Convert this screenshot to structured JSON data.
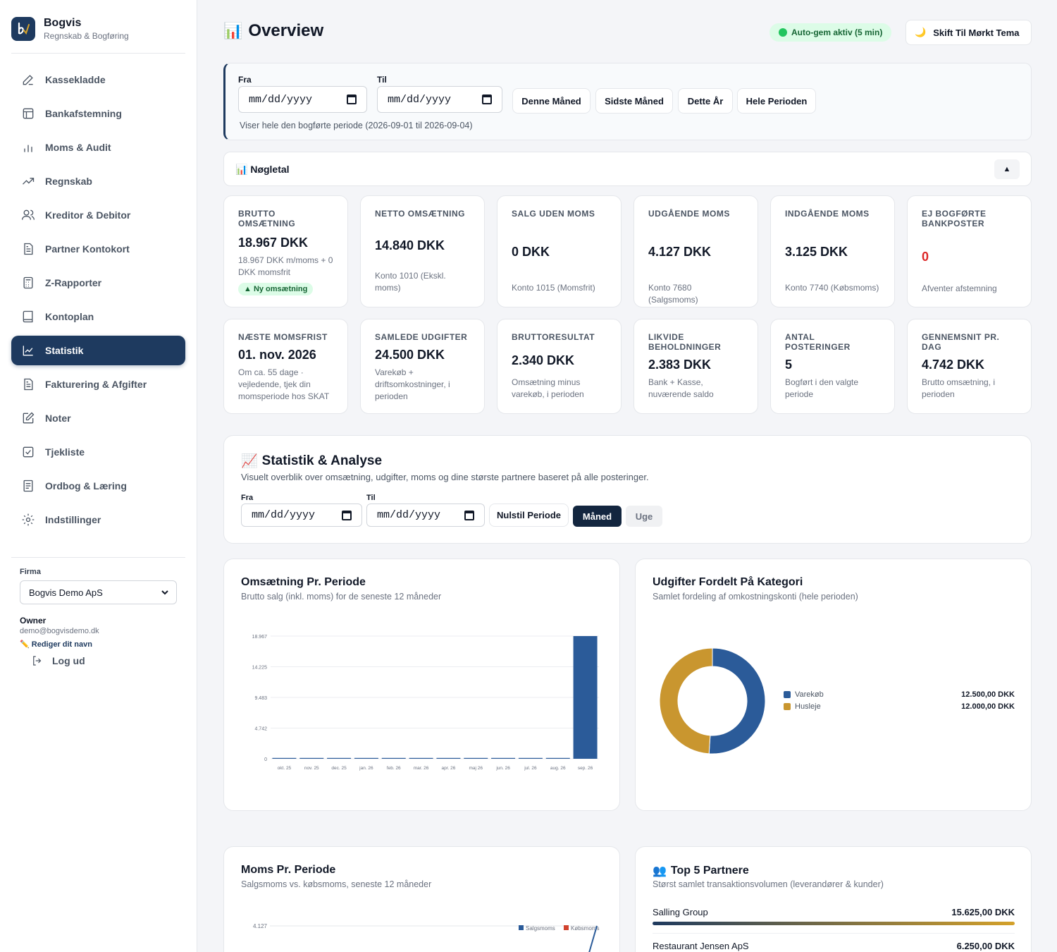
{
  "brand": {
    "name": "Bogvis",
    "subtitle": "Regnskab & Bogføring"
  },
  "nav": [
    {
      "label": "Kassekladde",
      "icon": "pencil-icon"
    },
    {
      "label": "Bankafstemning",
      "icon": "layout-icon"
    },
    {
      "label": "Moms & Audit",
      "icon": "bar-chart-icon"
    },
    {
      "label": "Regnskab",
      "icon": "trending-up-icon"
    },
    {
      "label": "Kreditor & Debitor",
      "icon": "users-icon"
    },
    {
      "label": "Partner Kontokort",
      "icon": "file-text-icon"
    },
    {
      "label": "Z-Rapporter",
      "icon": "calculator-icon"
    },
    {
      "label": "Kontoplan",
      "icon": "book-icon"
    },
    {
      "label": "Statistik",
      "icon": "line-chart-icon",
      "active": true
    },
    {
      "label": "Fakturering & Afgifter",
      "icon": "file-text-icon"
    },
    {
      "label": "Noter",
      "icon": "edit-icon"
    },
    {
      "label": "Tjekliste",
      "icon": "check-square-icon"
    },
    {
      "label": "Ordbog & Læring",
      "icon": "book-open-icon"
    },
    {
      "label": "Indstillinger",
      "icon": "gear-icon"
    }
  ],
  "firma": {
    "label": "Firma",
    "selected": "Bogvis Demo ApS"
  },
  "user": {
    "role": "Owner",
    "email": "demo@bogvisdemo.dk",
    "edit_label": "Rediger dit navn",
    "logout": "Log ud"
  },
  "header": {
    "title": "Overview",
    "autosave": "Auto-gem aktiv (5 min)",
    "theme_button": "Skift Til Mørkt Tema"
  },
  "period": {
    "from_label": "Fra",
    "to_label": "Til",
    "date_placeholder": "mm/dd/yyyy",
    "buttons": [
      "Denne Måned",
      "Sidste Måned",
      "Dette År",
      "Hele Perioden"
    ],
    "note": "Viser hele den bogførte periode (2026-09-01 til 2026-09-04)"
  },
  "kpi": {
    "title": "Nøgletal",
    "cards": [
      {
        "label": "Brutto Omsætning",
        "value": "18.967 DKK",
        "sub": "18.967 DKK m/moms + 0 DKK momsfrit",
        "badge": "▲ Ny omsætning"
      },
      {
        "label": "Netto Omsætning",
        "value": "14.840 DKK",
        "sub": "Konto 1010 (Ekskl. moms)"
      },
      {
        "label": "Salg Uden Moms",
        "value": "0 DKK",
        "sub": "Konto 1015 (Momsfrit)"
      },
      {
        "label": "Udgående Moms",
        "value": "4.127 DKK",
        "sub": "Konto 7680 (Salgsmoms)"
      },
      {
        "label": "Indgående Moms",
        "value": "3.125 DKK",
        "sub": "Konto 7740 (Købsmoms)"
      },
      {
        "label": "Ej Bogførte Bankposter",
        "value": "0",
        "sub": "Afventer afstemning",
        "value_color": "#dc2626"
      },
      {
        "label": "Næste Momsfrist",
        "value": "01. nov. 2026",
        "sub": "Om ca. 55 dage · vejledende, tjek din momsperiode hos SKAT"
      },
      {
        "label": "Samlede Udgifter",
        "value": "24.500 DKK",
        "sub": "Varekøb + driftsomkostninger, i perioden"
      },
      {
        "label": "Bruttoresultat",
        "value": "2.340 DKK",
        "sub": "Omsætning minus varekøb, i perioden"
      },
      {
        "label": "Likvide Beholdninger",
        "value": "2.383 DKK",
        "sub": "Bank + Kasse, nuværende saldo"
      },
      {
        "label": "Antal Posteringer",
        "value": "5",
        "sub": "Bogført i den valgte periode"
      },
      {
        "label": "Gennemsnit Pr. Dag",
        "value": "4.742 DKK",
        "sub": "Brutto omsætning, i perioden"
      }
    ]
  },
  "stats": {
    "title": "Statistik & Analyse",
    "subtitle": "Visuelt overblik over omsætning, udgifter, moms og dine største partnere baseret på alle posteringer.",
    "from_label": "Fra",
    "to_label": "Til",
    "date_placeholder": "mm/dd/yyyy",
    "reset": "Nulstil Periode",
    "month": "Måned",
    "week": "Uge"
  },
  "revenue_panel": {
    "title": "Omsætning Pr. Periode",
    "subtitle": "Brutto salg (inkl. moms) for de seneste 12 måneder"
  },
  "expense_panel": {
    "title": "Udgifter Fordelt På Kategori",
    "subtitle": "Samlet fordeling af omkostningskonti (hele perioden)"
  },
  "vat_panel": {
    "title": "Moms Pr. Periode",
    "subtitle": "Salgsmoms vs. købsmoms, seneste 12 måneder"
  },
  "partners_panel": {
    "title": "Top 5 Partnere",
    "subtitle": "Størst samlet transaktionsvolumen (leverandører & kunder)",
    "items": [
      {
        "name": "Salling Group",
        "amount": "15.625,00 DKK",
        "share": 1.0
      },
      {
        "name": "Restaurant Jensen ApS",
        "amount": "6.250,00 DKK",
        "share": 0.4
      }
    ]
  },
  "chart_data": [
    {
      "type": "bar",
      "title": "Omsætning Pr. Periode",
      "categories": [
        "okt. 25",
        "nov. 25",
        "dec. 25",
        "jan. 26",
        "feb. 26",
        "mar. 26",
        "apr. 26",
        "maj 26",
        "jun. 26",
        "jul. 26",
        "aug. 26",
        "sep. 26"
      ],
      "values": [
        0,
        0,
        0,
        0,
        0,
        0,
        0,
        0,
        0,
        0,
        0,
        18967
      ],
      "yticks": [
        "0",
        "4.742",
        "9.483",
        "14.225",
        "18.967"
      ],
      "ylim": [
        0,
        18967
      ],
      "color": "#2b5b99"
    },
    {
      "type": "pie",
      "title": "Udgifter Fordelt På Kategori",
      "labels": [
        "Varekøb",
        "Husleje"
      ],
      "values": [
        12500,
        12000
      ],
      "value_labels": [
        "12.500,00 DKK",
        "12.000,00 DKK"
      ],
      "colors": [
        "#2b5b99",
        "#c9962f"
      ]
    },
    {
      "type": "line",
      "title": "Moms Pr. Periode",
      "series": [
        {
          "name": "Salgsmoms",
          "color": "#2b5b99"
        },
        {
          "name": "Købsmoms",
          "color": "#d1432e"
        }
      ],
      "yticks": [
        "4.127"
      ]
    }
  ]
}
